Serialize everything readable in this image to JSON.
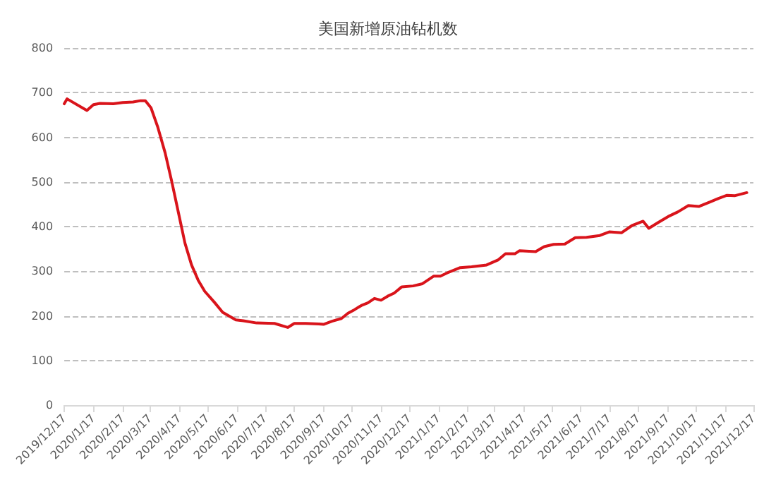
{
  "chart_data": {
    "type": "line",
    "title": "美国新增原油钻机数",
    "x": [
      "2019-12-17",
      "2019-12-20",
      "2020-01-10",
      "2020-01-17",
      "2020-01-24",
      "2020-02-07",
      "2020-02-17",
      "2020-02-28",
      "2020-03-07",
      "2020-03-12",
      "2020-03-18",
      "2020-03-25",
      "2020-04-02",
      "2020-04-09",
      "2020-04-16",
      "2020-04-23",
      "2020-04-30",
      "2020-05-07",
      "2020-05-14",
      "2020-05-24",
      "2020-06-02",
      "2020-06-16",
      "2020-06-24",
      "2020-07-08",
      "2020-07-27",
      "2020-08-10",
      "2020-08-17",
      "2020-08-29",
      "2020-09-12",
      "2020-09-17",
      "2020-09-26",
      "2020-10-06",
      "2020-10-13",
      "2020-10-20",
      "2020-10-27",
      "2020-11-03",
      "2020-11-10",
      "2020-11-17",
      "2020-11-24",
      "2020-12-01",
      "2020-12-09",
      "2020-12-21",
      "2020-12-31",
      "2021-01-12",
      "2021-01-19",
      "2021-01-28",
      "2021-02-09",
      "2021-02-21",
      "2021-03-09",
      "2021-03-21",
      "2021-03-29",
      "2021-04-08",
      "2021-04-13",
      "2021-04-30",
      "2021-05-09",
      "2021-05-19",
      "2021-05-31",
      "2021-06-11",
      "2021-06-23",
      "2021-07-07",
      "2021-07-17",
      "2021-07-30",
      "2021-08-10",
      "2021-08-22",
      "2021-08-28",
      "2021-09-07",
      "2021-09-19",
      "2021-09-28",
      "2021-10-09",
      "2021-10-20",
      "2021-11-01",
      "2021-11-10",
      "2021-11-19",
      "2021-11-27",
      "2021-12-10"
    ],
    "series": [
      {
        "color": "#d9141b",
        "values": [
          675,
          686,
          660,
          673,
          676,
          675,
          678,
          679,
          682,
          682,
          666,
          624,
          565,
          501,
          432,
          363,
          314,
          280,
          255,
          231,
          208,
          191,
          189,
          184,
          183,
          174,
          183,
          183,
          182,
          181,
          188,
          194,
          206,
          214,
          223,
          229,
          239,
          235,
          244,
          251,
          265,
          267,
          272,
          289,
          289,
          298,
          308,
          310,
          314,
          325,
          339,
          339,
          346,
          344,
          355,
          360,
          361,
          375,
          376,
          380,
          388,
          386,
          402,
          412,
          396,
          409,
          424,
          433,
          447,
          445,
          455,
          463,
          470,
          469,
          476
        ]
      }
    ],
    "xlim": [
      "2019-12-17",
      "2021-12-17"
    ],
    "xticks": [
      {
        "value": "2019-12-17",
        "label": "2019/12/17"
      },
      {
        "value": "2020-01-17",
        "label": "2020/1/17"
      },
      {
        "value": "2020-02-17",
        "label": "2020/2/17"
      },
      {
        "value": "2020-03-17",
        "label": "2020/3/17"
      },
      {
        "value": "2020-04-17",
        "label": "2020/4/17"
      },
      {
        "value": "2020-05-17",
        "label": "2020/5/17"
      },
      {
        "value": "2020-06-17",
        "label": "2020/6/17"
      },
      {
        "value": "2020-07-17",
        "label": "2020/7/17"
      },
      {
        "value": "2020-08-17",
        "label": "2020/8/17"
      },
      {
        "value": "2020-09-17",
        "label": "2020/9/17"
      },
      {
        "value": "2020-10-17",
        "label": "2020/10/17"
      },
      {
        "value": "2020-11-17",
        "label": "2020/11/17"
      },
      {
        "value": "2020-12-17",
        "label": "2020/12/17"
      },
      {
        "value": "2021-01-17",
        "label": "2021/1/17"
      },
      {
        "value": "2021-02-17",
        "label": "2021/2/17"
      },
      {
        "value": "2021-03-17",
        "label": "2021/3/17"
      },
      {
        "value": "2021-04-17",
        "label": "2021/4/17"
      },
      {
        "value": "2021-05-17",
        "label": "2021/5/17"
      },
      {
        "value": "2021-06-17",
        "label": "2021/6/17"
      },
      {
        "value": "2021-07-17",
        "label": "2021/7/17"
      },
      {
        "value": "2021-08-17",
        "label": "2021/8/17"
      },
      {
        "value": "2021-09-17",
        "label": "2021/9/17"
      },
      {
        "value": "2021-10-17",
        "label": "2021/10/17"
      },
      {
        "value": "2021-11-17",
        "label": "2021/11/17"
      },
      {
        "value": "2021-12-17",
        "label": "2021/12/17"
      }
    ],
    "ylim": [
      0,
      800
    ],
    "yticks": [
      0,
      100,
      200,
      300,
      400,
      500,
      600,
      700,
      800
    ],
    "grid": "y",
    "marker": "none",
    "line_style": "solid"
  }
}
